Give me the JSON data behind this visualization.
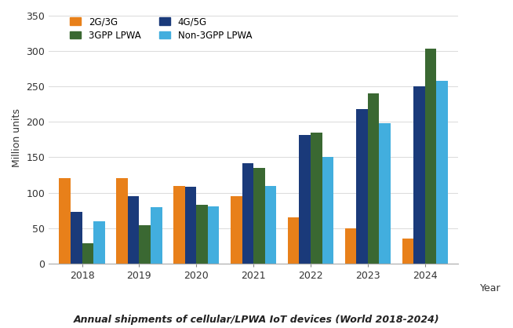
{
  "years": [
    "2018",
    "2019",
    "2020",
    "2021",
    "2022",
    "2023",
    "2024"
  ],
  "series_order": [
    "2G/3G",
    "4G/5G",
    "3GPP LPWA",
    "Non-3GPP LPWA"
  ],
  "series": {
    "2G/3G": [
      120,
      120,
      110,
      95,
      65,
      50,
      35
    ],
    "4G/5G": [
      73,
      95,
      108,
      142,
      182,
      218,
      250
    ],
    "3GPP LPWA": [
      28,
      54,
      83,
      135,
      185,
      240,
      303
    ],
    "Non-3GPP LPWA": [
      60,
      80,
      81,
      110,
      150,
      198,
      258
    ]
  },
  "colors": {
    "2G/3G": "#E8801A",
    "4G/5G": "#1A3A7A",
    "3GPP LPWA": "#3A6832",
    "Non-3GPP LPWA": "#42AEDE"
  },
  "legend_order": [
    "2G/3G",
    "3GPP LPWA",
    "4G/5G",
    "Non-3GPP LPWA"
  ],
  "ylabel": "Million units",
  "xlabel": "Year",
  "ylim": [
    0,
    355
  ],
  "yticks": [
    0,
    50,
    100,
    150,
    200,
    250,
    300,
    350
  ],
  "title": "Annual shipments of cellular/LPWA IoT devices (World 2018-2024)",
  "bg_color": "#FFFFFF",
  "grid_color": "#DDDDDD"
}
